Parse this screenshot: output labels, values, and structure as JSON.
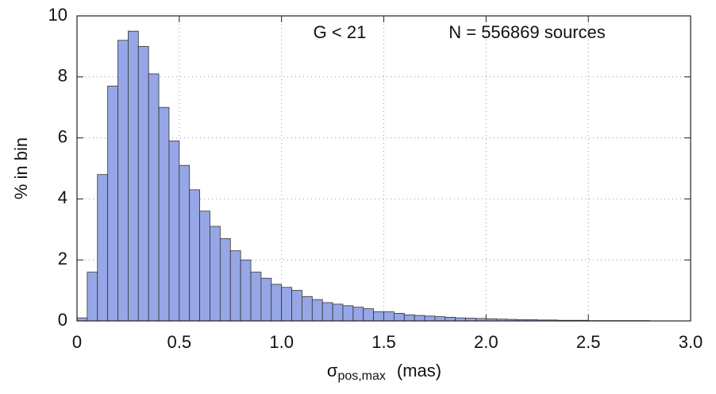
{
  "chart_data": {
    "type": "histogram",
    "annotations": [
      "G  <  21",
      "N = 556869  sources"
    ],
    "x_label": {
      "symbol": "σ",
      "subscript": "pos,max",
      "unit": "(mas)"
    },
    "y_label": "% in bin",
    "bins": [
      0,
      0.05,
      0.1,
      0.15,
      0.2,
      0.25,
      0.3,
      0.35,
      0.4,
      0.45,
      0.5,
      0.55,
      0.6,
      0.65,
      0.7,
      0.75,
      0.8,
      0.85,
      0.9,
      0.95,
      1.0,
      1.05,
      1.1,
      1.15,
      1.2,
      1.25,
      1.3,
      1.35,
      1.4,
      1.45,
      1.5,
      1.55,
      1.6,
      1.65,
      1.7,
      1.75,
      1.8,
      1.85,
      1.9,
      1.95,
      2.0,
      2.05,
      2.1,
      2.15,
      2.2,
      2.25,
      2.3,
      2.35,
      2.4,
      2.45,
      2.5,
      2.55,
      2.6,
      2.65,
      2.7,
      2.75,
      2.8,
      2.85,
      2.9,
      2.95,
      3.0
    ],
    "values": [
      0.1,
      1.6,
      4.8,
      7.7,
      9.2,
      9.5,
      9.0,
      8.1,
      7.0,
      5.9,
      5.1,
      4.3,
      3.6,
      3.1,
      2.7,
      2.3,
      2.0,
      1.6,
      1.4,
      1.2,
      1.1,
      1.0,
      0.8,
      0.7,
      0.6,
      0.55,
      0.5,
      0.45,
      0.4,
      0.3,
      0.3,
      0.25,
      0.2,
      0.18,
      0.16,
      0.14,
      0.12,
      0.1,
      0.09,
      0.08,
      0.07,
      0.06,
      0.05,
      0.04,
      0.04,
      0.03,
      0.03,
      0.02,
      0.02,
      0.02,
      0.01,
      0.01,
      0.01,
      0.01,
      0.01,
      0.01,
      0,
      0,
      0,
      0
    ],
    "color": "#96a6e6",
    "xlim": [
      0,
      3.0
    ],
    "ylim": [
      0,
      10
    ],
    "xticks": [
      0,
      0.5,
      {
        "value": 1.0,
        "label": "1.0"
      },
      1.5,
      {
        "value": 2.0,
        "label": "2.0"
      },
      2.5,
      {
        "value": 3.0,
        "label": "3.0"
      }
    ],
    "yticks": [
      0,
      2,
      4,
      6,
      8,
      10
    ],
    "grid": true
  }
}
